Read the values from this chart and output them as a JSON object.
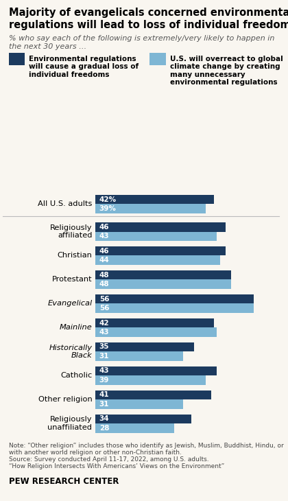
{
  "title_line1": "Majority of evangelicals concerned environmental",
  "title_line2": "regulations will lead to loss of individual freedoms",
  "subtitle": "% who say each of the following is extremely/very likely to happen in\nthe next 30 years …",
  "legend": [
    "Environmental regulations\nwill cause a gradual loss of\nindividual freedoms",
    "U.S. will overreact to global\nclimate change by creating\nmany unnecessary\nenvironmental regulations"
  ],
  "legend_colors": [
    "#1c3a5e",
    "#7eb6d4"
  ],
  "categories": [
    "All U.S. adults",
    "Religiously\naffiliated",
    "Christian",
    "Protestant",
    "Evangelical",
    "Mainline",
    "Historically\nBlack",
    "Catholic",
    "Other religion",
    "Religiously\nunaffiliated"
  ],
  "italic_categories": [
    "Evangelical",
    "Mainline",
    "Historically\nBlack"
  ],
  "dark_values": [
    42,
    46,
    46,
    48,
    56,
    42,
    35,
    43,
    41,
    34
  ],
  "light_values": [
    39,
    43,
    44,
    48,
    56,
    43,
    31,
    39,
    31,
    28
  ],
  "dark_color": "#1c3a5e",
  "light_color": "#7eb6d4",
  "bar_height": 0.32,
  "xlim": [
    0,
    65
  ],
  "note_line1": "Note: “Other religion” includes those who identify as Jewish, Muslim, Buddhist, Hindu, or",
  "note_line2": "with another world religion or other non-Christian faith.",
  "note_line3": "Source: Survey conducted April 11-17, 2022, among U.S. adults.",
  "note_line4": "“How Religion Intersects With Americans’ Views on the Environment”",
  "footer": "PEW RESEARCH CENTER",
  "show_percent_sign_indices": [
    0
  ],
  "background_color": "#f9f6f0"
}
